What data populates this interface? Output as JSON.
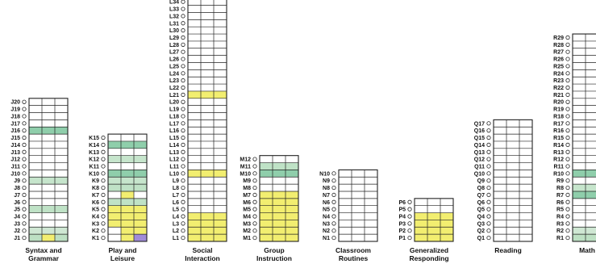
{
  "chart_data": {
    "type": "table",
    "domains": [
      {
        "name": "Syntax and Grammar",
        "label_lines": [
          "Syntax and",
          "Grammar"
        ],
        "prefix": "J",
        "levels": 20,
        "highlights": [
          {
            "row": 1,
            "cols": [
              0,
              1,
              2
            ],
            "color": "#bde0c3"
          },
          {
            "row": 1,
            "cols": [
              1
            ],
            "color": "#f2ee70"
          },
          {
            "row": 2,
            "cols": [
              0,
              1,
              2
            ],
            "color": "#cfe7d3"
          },
          {
            "row": 5,
            "cols": [
              0,
              1,
              2
            ],
            "color": "#bfe2c6"
          },
          {
            "row": 9,
            "cols": [
              0,
              1,
              2
            ],
            "color": "#c6e5cc"
          },
          {
            "row": 16,
            "cols": [
              0,
              1,
              2
            ],
            "color": "#8fceab"
          }
        ]
      },
      {
        "name": "Play and Leisure",
        "label_lines": [
          "Play and",
          "Leisure"
        ],
        "prefix": "K",
        "levels": 15,
        "highlights": [
          {
            "row": 1,
            "cols": [
              1
            ],
            "color": "#f2ee70"
          },
          {
            "row": 1,
            "cols": [
              2
            ],
            "color": "#a08bd8"
          },
          {
            "row": 2,
            "cols": [
              1,
              2
            ],
            "color": "#f2ee70"
          },
          {
            "row": 3,
            "cols": [
              0,
              1,
              2
            ],
            "color": "#f2ee70"
          },
          {
            "row": 4,
            "cols": [
              0,
              1,
              2
            ],
            "color": "#f2ee70"
          },
          {
            "row": 5,
            "cols": [
              0,
              1,
              2
            ],
            "color": "#f2ee70"
          },
          {
            "row": 6,
            "cols": [
              0,
              1,
              2
            ],
            "color": "#bfe2c6"
          },
          {
            "row": 7,
            "cols": [
              1
            ],
            "color": "#f2ee70"
          },
          {
            "row": 8,
            "cols": [
              0,
              1,
              2
            ],
            "color": "#bfe2c6"
          },
          {
            "row": 9,
            "cols": [
              0,
              1,
              2
            ],
            "color": "#c6e5cc"
          },
          {
            "row": 10,
            "cols": [
              0,
              1,
              2
            ],
            "color": "#8fceab"
          },
          {
            "row": 12,
            "cols": [
              0,
              1,
              2
            ],
            "color": "#c6e5cc"
          },
          {
            "row": 14,
            "cols": [
              0,
              1,
              2
            ],
            "color": "#8fceab"
          }
        ]
      },
      {
        "name": "Social Interaction",
        "label_lines": [
          "Social",
          "Interaction"
        ],
        "prefix": "L",
        "levels": 34,
        "highlights": [
          {
            "row": 1,
            "cols": [
              0,
              1,
              2
            ],
            "color": "#f2ee70"
          },
          {
            "row": 2,
            "cols": [
              0,
              1,
              2
            ],
            "color": "#f2ee70"
          },
          {
            "row": 3,
            "cols": [
              0,
              1,
              2
            ],
            "color": "#f2ee70"
          },
          {
            "row": 4,
            "cols": [
              0,
              1,
              2
            ],
            "color": "#f2ee70"
          },
          {
            "row": 10,
            "cols": [
              0,
              1,
              2
            ],
            "color": "#f2ee70"
          },
          {
            "row": 21,
            "cols": [
              0,
              1,
              2
            ],
            "color": "#f2ee70"
          }
        ]
      },
      {
        "name": "Group Instruction",
        "label_lines": [
          "Group",
          "Instruction"
        ],
        "prefix": "M",
        "levels": 12,
        "highlights": [
          {
            "row": 1,
            "cols": [
              0,
              1,
              2
            ],
            "color": "#f2ee70"
          },
          {
            "row": 2,
            "cols": [
              0,
              1,
              2
            ],
            "color": "#f2ee70"
          },
          {
            "row": 3,
            "cols": [
              0,
              1,
              2
            ],
            "color": "#f2ee70"
          },
          {
            "row": 4,
            "cols": [
              0,
              1,
              2
            ],
            "color": "#f2ee70"
          },
          {
            "row": 5,
            "cols": [
              0,
              1,
              2
            ],
            "color": "#f2ee70"
          },
          {
            "row": 6,
            "cols": [
              0,
              1,
              2
            ],
            "color": "#f2ee70"
          },
          {
            "row": 7,
            "cols": [
              0,
              1,
              2
            ],
            "color": "#f2ee70"
          },
          {
            "row": 10,
            "cols": [
              0,
              1,
              2
            ],
            "color": "#8fceab"
          },
          {
            "row": 11,
            "cols": [
              0,
              1,
              2
            ],
            "color": "#bfe2c6"
          }
        ]
      },
      {
        "name": "Classroom Routines",
        "label_lines": [
          "Classroom",
          "Routines"
        ],
        "prefix": "N",
        "levels": 10,
        "highlights": []
      },
      {
        "name": "Generalized Responding",
        "label_lines": [
          "Generalized",
          "Responding"
        ],
        "prefix": "P",
        "levels": 6,
        "highlights": [
          {
            "row": 1,
            "cols": [
              0,
              1,
              2
            ],
            "color": "#f2ee70"
          },
          {
            "row": 2,
            "cols": [
              0,
              1,
              2
            ],
            "color": "#f2ee70"
          },
          {
            "row": 3,
            "cols": [
              0,
              1,
              2
            ],
            "color": "#f2ee70"
          },
          {
            "row": 4,
            "cols": [
              0,
              1,
              2
            ],
            "color": "#f2ee70"
          }
        ]
      },
      {
        "name": "Reading",
        "label_lines": [
          "Reading"
        ],
        "prefix": "Q",
        "levels": 17,
        "highlights": []
      },
      {
        "name": "Math",
        "label_lines": [
          "Math"
        ],
        "prefix": "R",
        "levels": 29,
        "highlights": [
          {
            "row": 1,
            "cols": [
              0,
              1,
              2
            ],
            "color": "#bde0c3"
          },
          {
            "row": 2,
            "cols": [
              0,
              1,
              2
            ],
            "color": "#cfe7d3"
          },
          {
            "row": 7,
            "cols": [
              0,
              1,
              2
            ],
            "color": "#8fceab"
          },
          {
            "row": 8,
            "cols": [
              0,
              1,
              2
            ],
            "color": "#c6e5cc"
          },
          {
            "row": 10,
            "cols": [
              0,
              1,
              2
            ],
            "color": "#8fceab"
          }
        ]
      }
    ]
  }
}
